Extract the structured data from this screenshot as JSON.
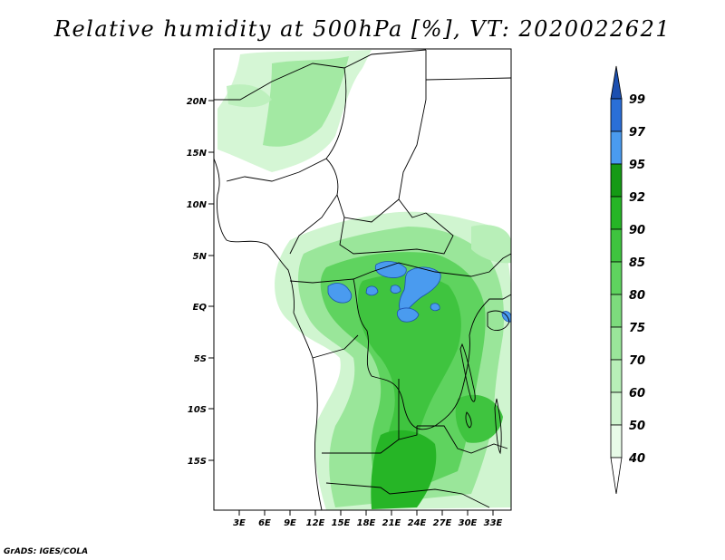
{
  "title": "Relative humidity at 500hPa [%], VT: 2020022621",
  "credit": "GrADS: IGES/COLA",
  "lat_ticks": [
    "20N",
    "15N",
    "10N",
    "5N",
    "EQ",
    "5S",
    "10S",
    "15S"
  ],
  "lon_ticks": [
    "3E",
    "6E",
    "9E",
    "12E",
    "15E",
    "18E",
    "21E",
    "24E",
    "27E",
    "30E",
    "33E"
  ],
  "colorbar": {
    "levels": [
      "40",
      "50",
      "60",
      "70",
      "75",
      "80",
      "85",
      "90",
      "92",
      "95",
      "97",
      "99"
    ],
    "colors": [
      "#ffffff",
      "#e8fbe8",
      "#d0f5d0",
      "#b8efb8",
      "#9ae69a",
      "#7ddc7d",
      "#5fd35f",
      "#3fc43f",
      "#26b526",
      "#159a15",
      "#4a9bef",
      "#2a6fd8",
      "#1c4fb0"
    ]
  }
}
